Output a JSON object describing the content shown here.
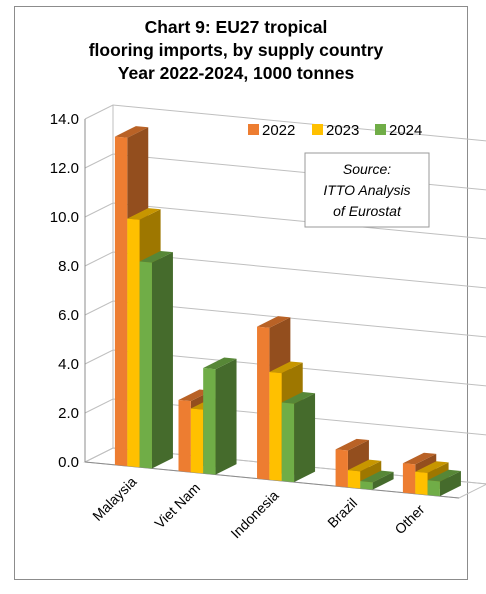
{
  "chart_data": {
    "type": "bar",
    "title_lines": [
      "Chart 9: EU27 tropical",
      "flooring imports, by supply country",
      "Year 2022-2024, 1000 tonnes"
    ],
    "categories": [
      "Malaysia",
      "Viet Nam",
      "Indonesia",
      "Brazil",
      "Other"
    ],
    "series": [
      {
        "name": "2022",
        "values": [
          13.4,
          2.9,
          6.2,
          1.5,
          1.2
        ],
        "color": "#ED7D31"
      },
      {
        "name": "2023",
        "values": [
          10.1,
          2.6,
          4.4,
          0.7,
          0.9
        ],
        "color": "#FFC000"
      },
      {
        "name": "2024",
        "values": [
          8.4,
          4.3,
          3.2,
          0.3,
          0.6
        ],
        "color": "#70AD47"
      }
    ],
    "ylim": [
      0,
      14
    ],
    "yticks": [
      "0.0",
      "2.0",
      "4.0",
      "6.0",
      "8.0",
      "10.0",
      "12.0",
      "14.0"
    ],
    "grid": true,
    "legend_position": "top-right",
    "annotation_lines": [
      "Source:",
      "ITTO Analysis",
      "of Eurostat"
    ]
  }
}
